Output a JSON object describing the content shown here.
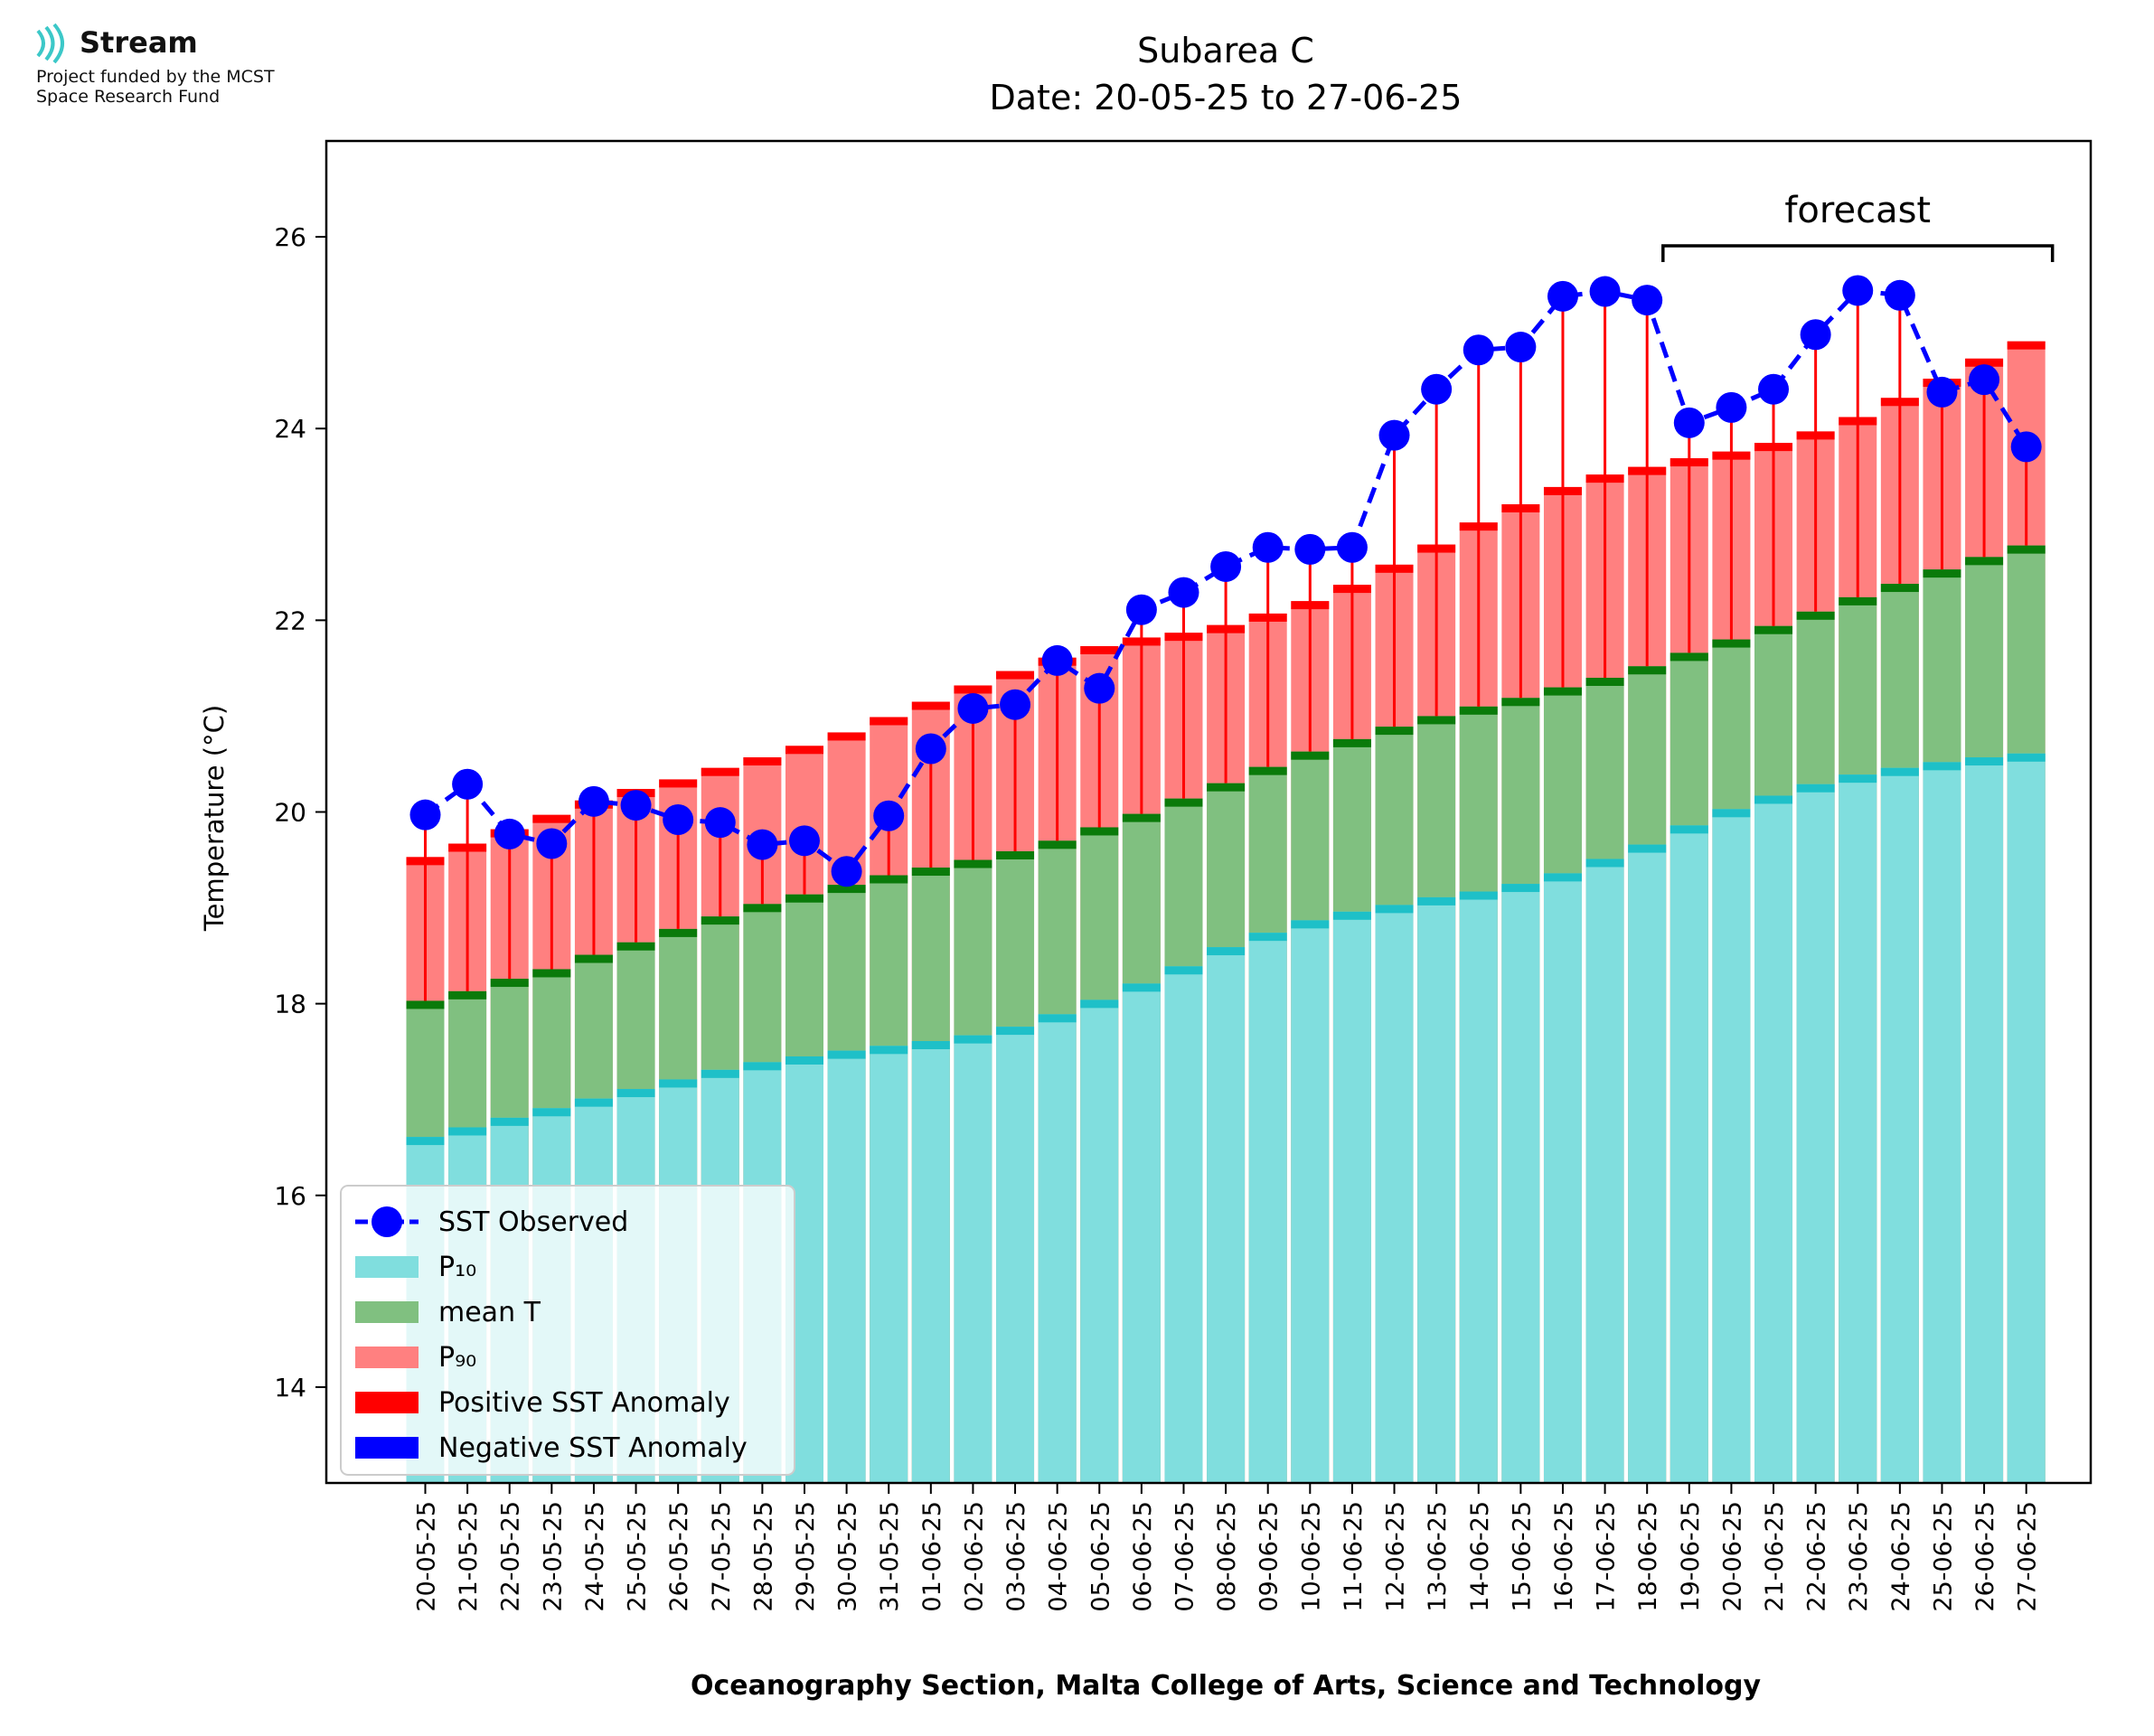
{
  "logo": {
    "name": "Stream",
    "line1": "Project funded by the MCST",
    "line2": "Space Research Fund",
    "accent": "#3cc8c8"
  },
  "chart_data": {
    "type": "bar",
    "title": "Subarea C",
    "subtitle": "Date: 20-05-25 to 27-06-25",
    "ylabel": "Temperature (°C)",
    "xlabel": "Oceanography Section, Malta College of Arts, Science and Technology",
    "ylim": [
      13,
      27
    ],
    "yticks": [
      14,
      16,
      18,
      20,
      22,
      24,
      26
    ],
    "categories": [
      "20-05-25",
      "21-05-25",
      "22-05-25",
      "23-05-25",
      "24-05-25",
      "25-05-25",
      "26-05-25",
      "27-05-25",
      "28-05-25",
      "29-05-25",
      "30-05-25",
      "31-05-25",
      "01-06-25",
      "02-06-25",
      "03-06-25",
      "04-06-25",
      "05-06-25",
      "06-06-25",
      "07-06-25",
      "08-06-25",
      "09-06-25",
      "10-06-25",
      "11-06-25",
      "12-06-25",
      "13-06-25",
      "14-06-25",
      "15-06-25",
      "16-06-25",
      "17-06-25",
      "18-06-25",
      "19-06-25",
      "20-06-25",
      "21-06-25",
      "22-06-25",
      "23-06-25",
      "24-06-25",
      "25-06-25",
      "26-06-25",
      "27-06-25"
    ],
    "series": [
      {
        "name": "SST Observed",
        "kind": "line",
        "color": "#0000ff",
        "values": [
          19.97,
          20.29,
          19.77,
          19.67,
          20.11,
          20.07,
          19.92,
          19.89,
          19.66,
          19.7,
          19.38,
          19.96,
          20.66,
          21.08,
          21.12,
          21.58,
          21.29,
          22.11,
          22.29,
          22.56,
          22.76,
          22.74,
          22.76,
          23.93,
          24.41,
          24.82,
          24.85,
          25.38,
          25.43,
          25.34,
          24.06,
          24.22,
          24.41,
          24.98,
          25.44,
          25.39,
          24.38,
          24.51,
          23.81
        ]
      },
      {
        "name": "P₁₀",
        "kind": "bar",
        "color": "#80dede",
        "edge": "#1ec0c8",
        "values": [
          16.61,
          16.71,
          16.81,
          16.91,
          17.01,
          17.11,
          17.21,
          17.31,
          17.39,
          17.45,
          17.51,
          17.56,
          17.61,
          17.67,
          17.76,
          17.89,
          18.04,
          18.21,
          18.39,
          18.59,
          18.74,
          18.87,
          18.96,
          19.03,
          19.11,
          19.17,
          19.25,
          19.36,
          19.51,
          19.66,
          19.86,
          20.03,
          20.17,
          20.29,
          20.39,
          20.46,
          20.52,
          20.57,
          20.61
        ]
      },
      {
        "name": "mean T",
        "kind": "bar",
        "color": "#80c080",
        "edge": "#0a7a0a",
        "values": [
          18.03,
          18.13,
          18.26,
          18.36,
          18.51,
          18.64,
          18.78,
          18.91,
          19.04,
          19.14,
          19.24,
          19.34,
          19.42,
          19.5,
          19.59,
          19.7,
          19.84,
          19.98,
          20.14,
          20.3,
          20.47,
          20.63,
          20.76,
          20.89,
          21.0,
          21.1,
          21.19,
          21.3,
          21.4,
          21.52,
          21.66,
          21.8,
          21.94,
          22.09,
          22.24,
          22.38,
          22.53,
          22.66,
          22.78
        ]
      },
      {
        "name": "P₉₀",
        "kind": "bar",
        "color": "#ff8080",
        "edge": "#ff0000",
        "values": [
          19.53,
          19.67,
          19.82,
          19.97,
          20.12,
          20.24,
          20.34,
          20.46,
          20.57,
          20.69,
          20.83,
          20.99,
          21.15,
          21.32,
          21.47,
          21.61,
          21.73,
          21.82,
          21.87,
          21.95,
          22.07,
          22.2,
          22.37,
          22.58,
          22.79,
          23.02,
          23.21,
          23.39,
          23.52,
          23.6,
          23.69,
          23.76,
          23.85,
          23.97,
          24.12,
          24.32,
          24.52,
          24.73,
          24.91
        ]
      },
      {
        "name": "Positive SST Anomaly",
        "kind": "legend-only",
        "color": "#ff0000"
      },
      {
        "name": "Negative SST Anomaly",
        "kind": "legend-only",
        "color": "#0000ff"
      }
    ],
    "annotations": [
      {
        "text": "forecast",
        "from": "19-06-25",
        "to": "27-06-25"
      }
    ],
    "legend": "lower-left",
    "grid": false
  }
}
